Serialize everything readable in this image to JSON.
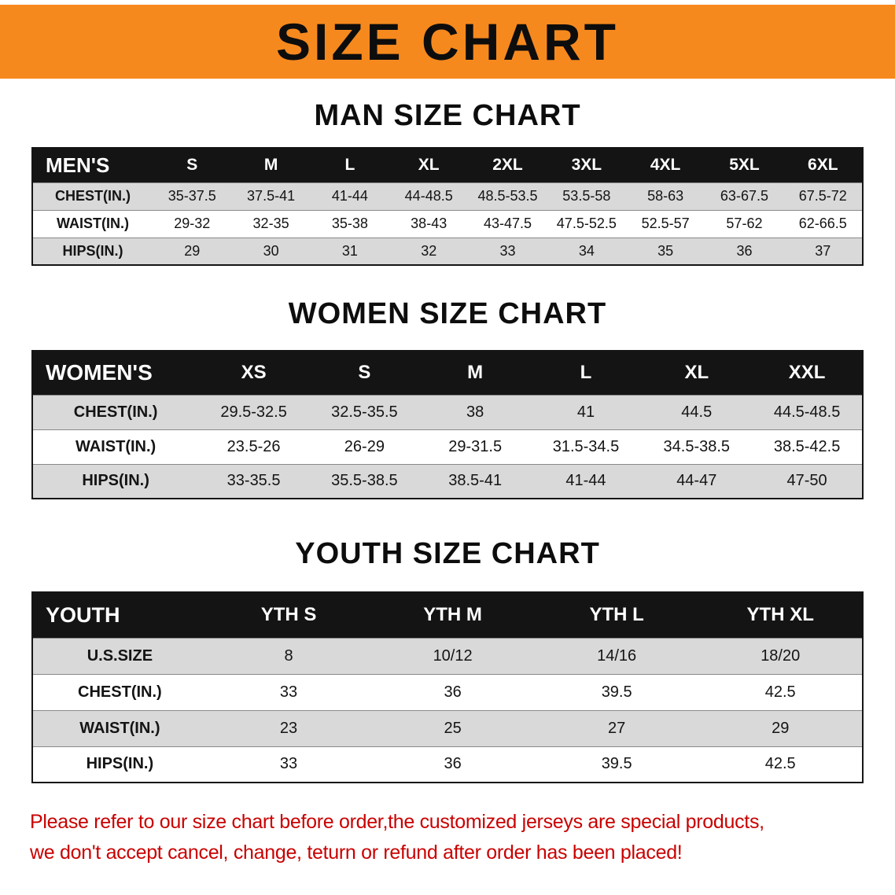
{
  "banner": {
    "title": "SIZE CHART",
    "bg_color": "#f6891e",
    "text_color": "#0d0d0d"
  },
  "sections": [
    {
      "heading": "MAN SIZE CHART",
      "table": {
        "header": [
          "MEN'S",
          "S",
          "M",
          "L",
          "XL",
          "2XL",
          "3XL",
          "4XL",
          "5XL",
          "6XL"
        ],
        "rows": [
          {
            "label": "CHEST(IN.)",
            "values": [
              "35-37.5",
              "37.5-41",
              "41-44",
              "44-48.5",
              "48.5-53.5",
              "53.5-58",
              "58-63",
              "63-67.5",
              "67.5-72"
            ]
          },
          {
            "label": "WAIST(IN.)",
            "values": [
              "29-32",
              "32-35",
              "35-38",
              "38-43",
              "43-47.5",
              "47.5-52.5",
              "52.5-57",
              "57-62",
              "62-66.5"
            ]
          },
          {
            "label": "HIPS(IN.)",
            "values": [
              "29",
              "30",
              "31",
              "32",
              "33",
              "34",
              "35",
              "36",
              "37"
            ]
          }
        ]
      }
    },
    {
      "heading": "WOMEN SIZE CHART",
      "table": {
        "header": [
          "WOMEN'S",
          "XS",
          "S",
          "M",
          "L",
          "XL",
          "XXL"
        ],
        "rows": [
          {
            "label": "CHEST(IN.)",
            "values": [
              "29.5-32.5",
              "32.5-35.5",
              "38",
              "41",
              "44.5",
              "44.5-48.5"
            ]
          },
          {
            "label": "WAIST(IN.)",
            "values": [
              "23.5-26",
              "26-29",
              "29-31.5",
              "31.5-34.5",
              "34.5-38.5",
              "38.5-42.5"
            ]
          },
          {
            "label": "HIPS(IN.)",
            "values": [
              "33-35.5",
              "35.5-38.5",
              "38.5-41",
              "41-44",
              "44-47",
              "47-50"
            ]
          }
        ]
      }
    },
    {
      "heading": "YOUTH SIZE CHART",
      "table": {
        "header": [
          "YOUTH",
          "YTH S",
          "YTH M",
          "YTH L",
          "YTH XL"
        ],
        "rows": [
          {
            "label": "U.S.SIZE",
            "values": [
              "8",
              "10/12",
              "14/16",
              "18/20"
            ]
          },
          {
            "label": "CHEST(IN.)",
            "values": [
              "33",
              "36",
              "39.5",
              "42.5"
            ]
          },
          {
            "label": "WAIST(IN.)",
            "values": [
              "23",
              "25",
              "27",
              "29"
            ]
          },
          {
            "label": "HIPS(IN.)",
            "values": [
              "33",
              "36",
              "39.5",
              "42.5"
            ]
          }
        ]
      }
    }
  ],
  "disclaimer": {
    "color": "#c90000",
    "line1": "Please refer to our size chart before order,the customized jerseys are special products,",
    "line2": "we don't accept cancel, change, teturn or refund after order has been placed!"
  }
}
